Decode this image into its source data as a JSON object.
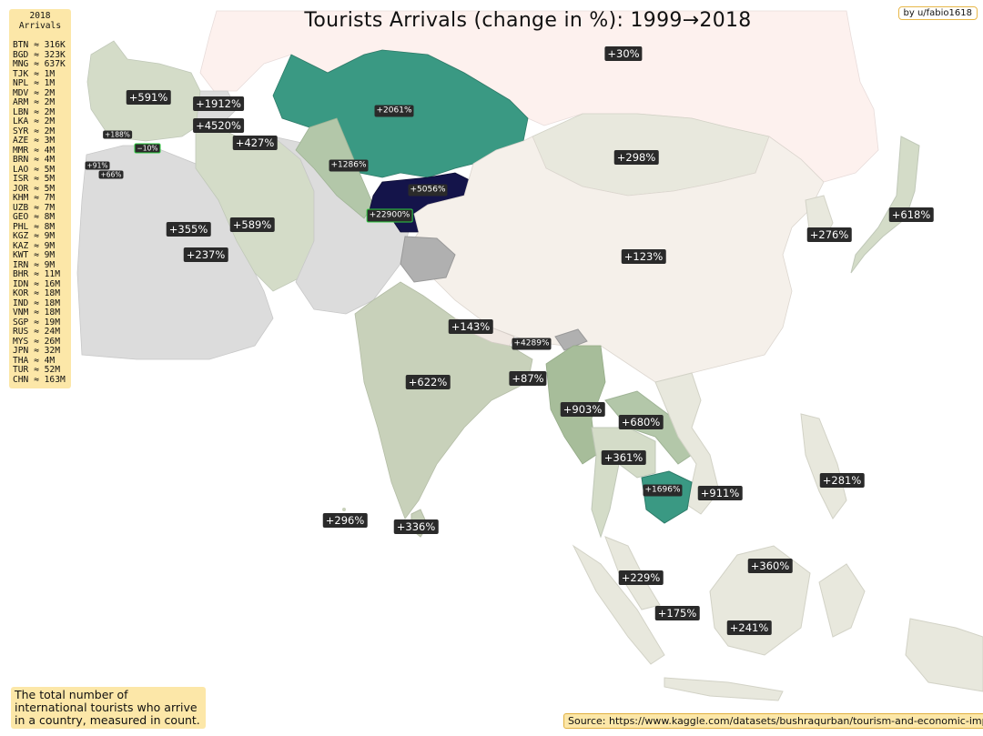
{
  "title": "Tourists Arrivals (change in %):  1999→2018",
  "credit": "by u/fabio1618",
  "arrivals_header": [
    "2018",
    "Arrivals"
  ],
  "arrivals": [
    "BTN ≈ 316K",
    "BGD ≈ 323K",
    "MNG ≈ 637K",
    "TJK ≈ 1M",
    "NPL ≈ 1M",
    "MDV ≈ 2M",
    "ARM ≈ 2M",
    "LBN ≈ 2M",
    "LKA ≈ 2M",
    "SYR ≈ 2M",
    "AZE ≈ 3M",
    "MMR ≈ 4M",
    "BRN ≈ 4M",
    "LAO ≈ 5M",
    "ISR ≈ 5M",
    "JOR ≈ 5M",
    "KHM ≈ 7M",
    "UZB ≈ 7M",
    "GEO ≈ 8M",
    "PHL ≈ 8M",
    "KGZ ≈ 9M",
    "KAZ ≈ 9M",
    "KWT ≈ 9M",
    "IRN ≈ 9M",
    "BHR ≈ 11M",
    "IDN ≈ 16M",
    "KOR ≈ 18M",
    "IND ≈ 18M",
    "VNM ≈ 18M",
    "SGP ≈ 19M",
    "RUS ≈ 24M",
    "MYS ≈ 26M",
    "JPN ≈ 32M",
    "THA ≈ 4M",
    "TUR ≈ 52M",
    "CHN ≈ 163M"
  ],
  "footnote": "The total number of international tourists who arrive in a country, measured in count.",
  "source": "Source: https://www.kaggle.com/datasets/bushraqurban/tourism-and-economic-impact",
  "colors": {
    "land_gray": "#dcdcdc",
    "russia": "#fdf1ee",
    "china": "#f5f0ea",
    "pale_sage": "#d4dcc8",
    "mid_sage": "#b3c7a9",
    "teal": "#3a9983",
    "navy": "#14144a",
    "label_bg": "#2a2a2a",
    "box_bg": "#fce7a8"
  },
  "labels": [
    {
      "text": "+30%"
    },
    {
      "text": "+591%"
    },
    {
      "text": "+1912%"
    },
    {
      "text": "+4520%"
    },
    {
      "text": "+427%"
    },
    {
      "text": "+188%"
    },
    {
      "text": "−10%"
    },
    {
      "text": "+91%"
    },
    {
      "text": "+66%"
    },
    {
      "text": "+2061%"
    },
    {
      "text": "+298%"
    },
    {
      "text": "+1286%"
    },
    {
      "text": "+5056%"
    },
    {
      "text": "+22900%"
    },
    {
      "text": "+618%"
    },
    {
      "text": "+276%"
    },
    {
      "text": "+355%"
    },
    {
      "text": "+589%"
    },
    {
      "text": "+237%"
    },
    {
      "text": "+123%"
    },
    {
      "text": "+143%"
    },
    {
      "text": "+4289%"
    },
    {
      "text": "+87%"
    },
    {
      "text": "+622%"
    },
    {
      "text": "+903%"
    },
    {
      "text": "+680%"
    },
    {
      "text": "+361%"
    },
    {
      "text": "+1696%"
    },
    {
      "text": "+911%"
    },
    {
      "text": "+281%"
    },
    {
      "text": "+296%"
    },
    {
      "text": "+336%"
    },
    {
      "text": "+229%"
    },
    {
      "text": "+360%"
    },
    {
      "text": "+175%"
    },
    {
      "text": "+241%"
    }
  ]
}
